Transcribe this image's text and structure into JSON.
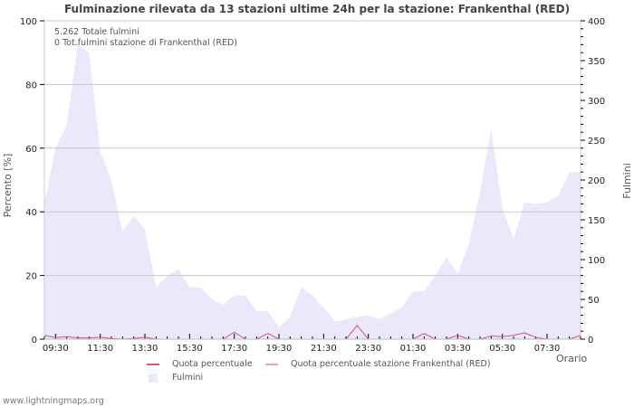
{
  "title": "Fulminazione rilevata da 13 stazioni ultime 24h per la stazione: Frankenthal (RED)",
  "info": {
    "total_strikes": "5.262 Totale fulmini",
    "station_strikes": "0 Tot.fulmini stazione di Frankenthal (RED)"
  },
  "axes": {
    "left_label": "Percento   [%]",
    "right_label": "Fulmini",
    "x_label": "Orario"
  },
  "legend": {
    "quota": "Quota percentuale",
    "quota_station": "Quota percentuale stazione Frankenthal (RED)",
    "fulmini": "Fulmini"
  },
  "colors": {
    "quota": "#d9506e",
    "quota_legend": "#d95f5f",
    "quota_station": "#f4a0a0",
    "fulmini_fill": "#e9e9fb",
    "grid": "#c8c8c8"
  },
  "footer": "www.lightningmaps.org",
  "chart_data": {
    "type": "area",
    "title": "Fulminazione rilevata da 13 stazioni ultime 24h per la stazione: Frankenthal (RED)",
    "xlabel": "Orario",
    "ylabel_left": "Percento [%]",
    "ylabel_right": "Fulmini",
    "ylim_left": [
      0,
      100
    ],
    "ylim_right": [
      0,
      400
    ],
    "yticks_left": [
      0,
      20,
      40,
      60,
      80,
      100
    ],
    "yticks_right": [
      0,
      50,
      100,
      150,
      200,
      250,
      300,
      350,
      400
    ],
    "xtick_labels": [
      "09:30",
      "11:30",
      "13:30",
      "15:30",
      "17:30",
      "19:30",
      "21:30",
      "23:30",
      "01:30",
      "03:30",
      "05:30",
      "07:30"
    ],
    "grid": true,
    "legend_position": "bottom",
    "x": [
      "09:00",
      "09:30",
      "10:00",
      "10:30",
      "11:00",
      "11:30",
      "12:00",
      "12:30",
      "13:00",
      "13:30",
      "14:00",
      "14:30",
      "15:00",
      "15:30",
      "16:00",
      "16:30",
      "17:00",
      "17:30",
      "18:00",
      "18:30",
      "19:00",
      "19:30",
      "20:00",
      "20:30",
      "21:00",
      "21:30",
      "22:00",
      "22:30",
      "23:00",
      "23:30",
      "00:00",
      "00:30",
      "01:00",
      "01:30",
      "02:00",
      "02:30",
      "03:00",
      "03:30",
      "04:00",
      "04:30",
      "05:00",
      "05:30",
      "06:00",
      "06:30",
      "07:00",
      "07:30",
      "08:00",
      "08:30",
      "09:00"
    ],
    "series": [
      {
        "name": "Fulmini",
        "axis": "right",
        "values": [
          170,
          240,
          270,
          370,
          360,
          235,
          200,
          135,
          155,
          138,
          65,
          80,
          88,
          65,
          65,
          50,
          43,
          55,
          55,
          35,
          35,
          15,
          28,
          65,
          55,
          40,
          22,
          25,
          28,
          30,
          25,
          32,
          40,
          60,
          60,
          80,
          103,
          83,
          120,
          185,
          265,
          165,
          125,
          172,
          170,
          172,
          180,
          210,
          210
        ]
      },
      {
        "name": "Quota percentuale",
        "axis": "left",
        "values": [
          1.2,
          0.5,
          0.8,
          0.4,
          0.4,
          0.6,
          0.2,
          0,
          0.2,
          0.6,
          0,
          0,
          0,
          0,
          0,
          0,
          0,
          2.2,
          0,
          0,
          1.8,
          0,
          0,
          0,
          0,
          0,
          0,
          0,
          4.3,
          0,
          0,
          0,
          0,
          0,
          1.8,
          0,
          0,
          1.2,
          0,
          0,
          1.0,
          0.8,
          1.2,
          2.0,
          0.5,
          0,
          0,
          0,
          1.2
        ]
      },
      {
        "name": "Quota percentuale stazione Frankenthal (RED)",
        "axis": "left",
        "values": []
      }
    ]
  }
}
